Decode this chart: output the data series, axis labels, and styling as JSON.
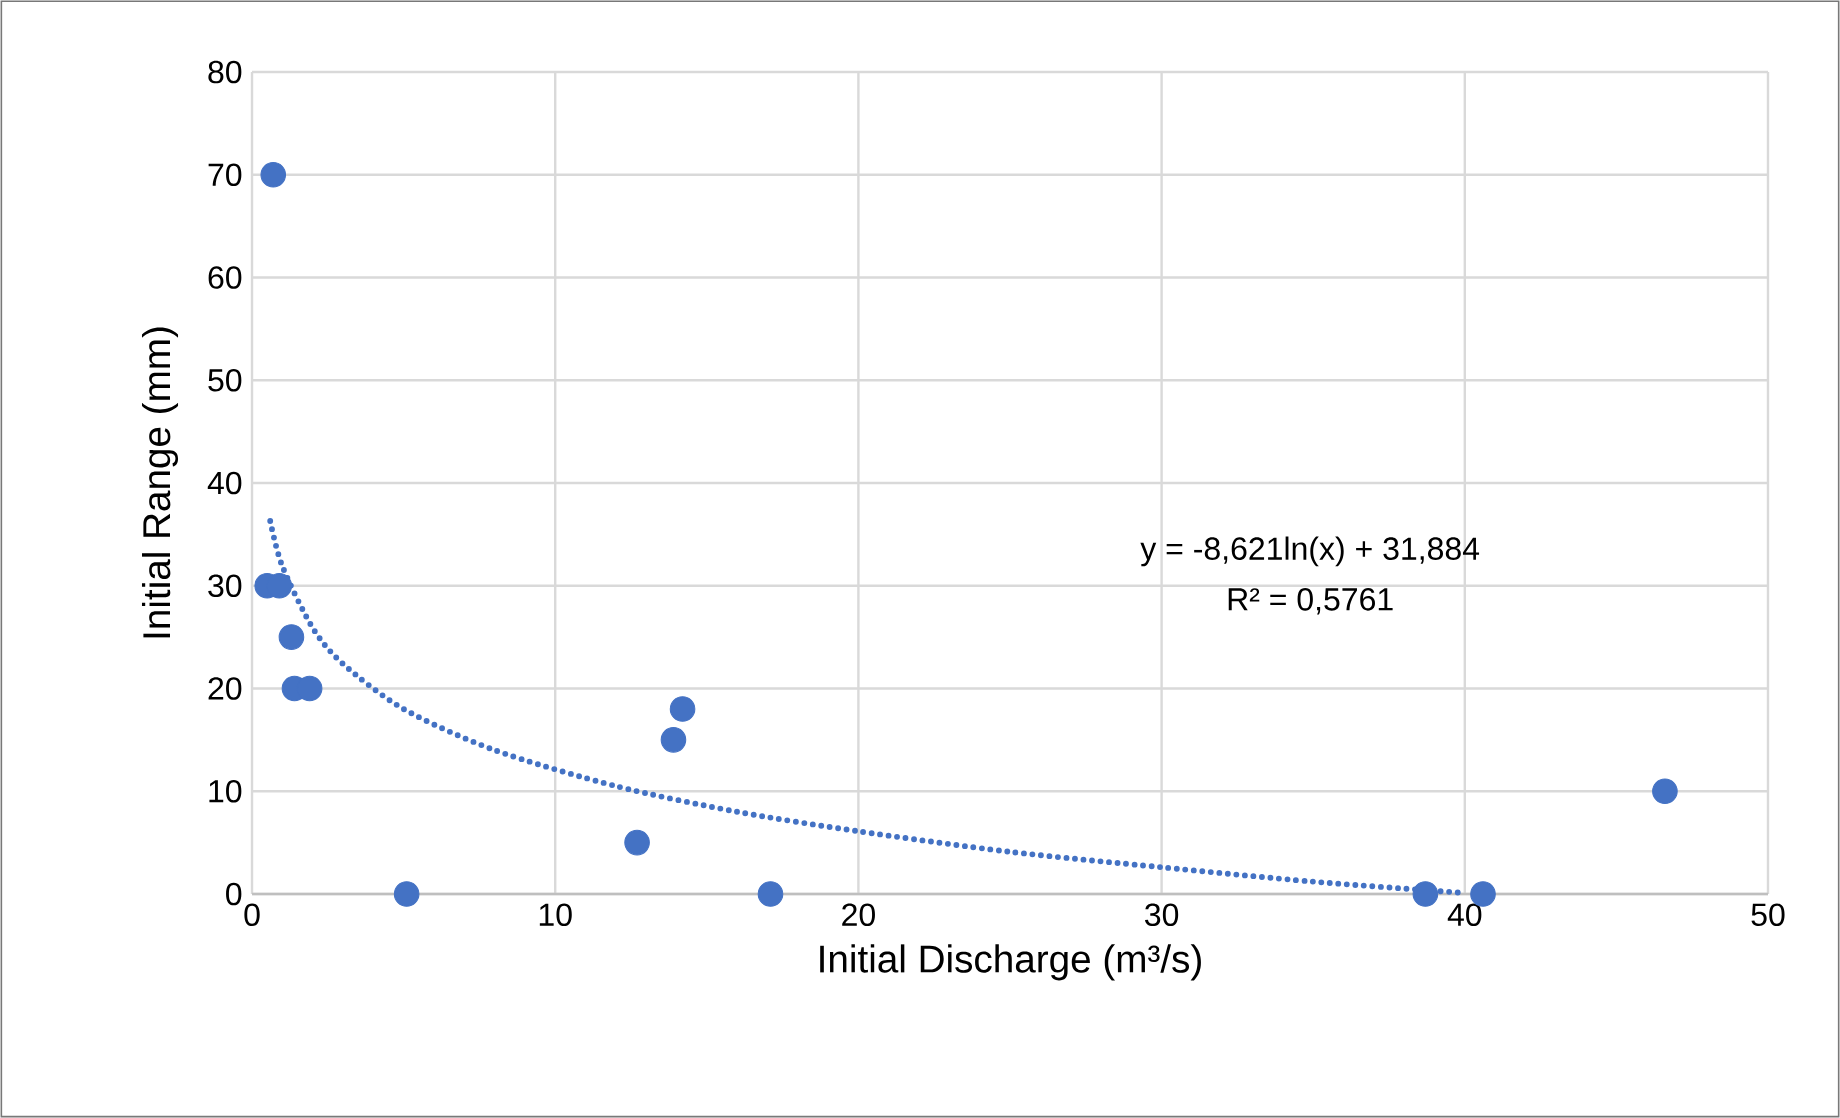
{
  "chart_data": {
    "type": "scatter",
    "xlabel": "Initial Discharge (m³/s)",
    "ylabel": "Initial Range (mm)",
    "xlim": [
      0,
      50
    ],
    "xticks": [
      0,
      10,
      20,
      30,
      40,
      50
    ],
    "ylim": [
      0,
      80
    ],
    "yticks": [
      0,
      10,
      20,
      30,
      40,
      50,
      60,
      70,
      80
    ],
    "grid": true,
    "annotations": [
      "y = -8,621ln(x) + 31,884",
      "R² = 0,5761"
    ],
    "series": [
      {
        "marker": "circle",
        "color": "#4472c4",
        "x": [
          0.7,
          0.5,
          0.9,
          1.3,
          1.4,
          1.9,
          5.1,
          12.7,
          13.9,
          14.2,
          17.1,
          38.7,
          40.6,
          46.6
        ],
        "values": [
          70,
          30,
          30,
          25,
          20,
          20,
          0,
          5,
          15,
          18,
          0,
          0,
          0,
          10
        ]
      },
      {
        "type": "line",
        "marker": "none",
        "color": "#4472c4",
        "line_style": "dotted",
        "x": [
          0.6,
          1,
          2,
          3,
          5,
          8,
          12,
          16,
          20,
          25,
          30,
          35,
          40
        ],
        "values": [
          36.3,
          31.9,
          25.9,
          22.4,
          18.0,
          14.0,
          10.5,
          8.0,
          6.1,
          4.1,
          2.6,
          1.2,
          0.1
        ]
      }
    ]
  }
}
